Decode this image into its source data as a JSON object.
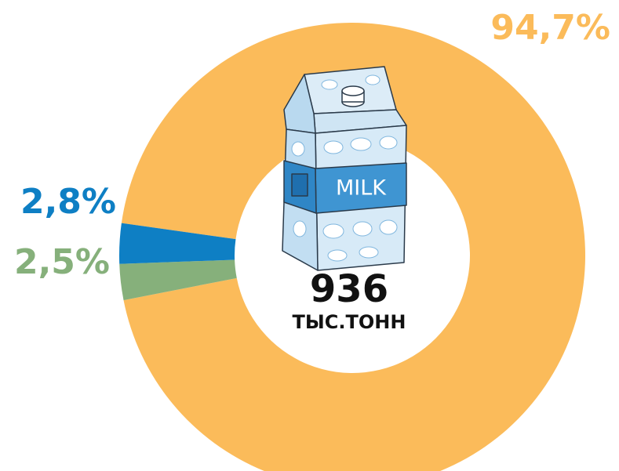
{
  "chart_data": {
    "type": "pie",
    "donut": true,
    "values": [
      94.7,
      2.5,
      2.8
    ],
    "value_labels": [
      "94,7%",
      "2,5%",
      "2,8%"
    ],
    "colors": [
      "#fbbb5a",
      "#86b07b",
      "#0e7fc4"
    ],
    "annotations": [
      "936",
      "ТЫС.ТОНН",
      "MILK"
    ]
  }
}
